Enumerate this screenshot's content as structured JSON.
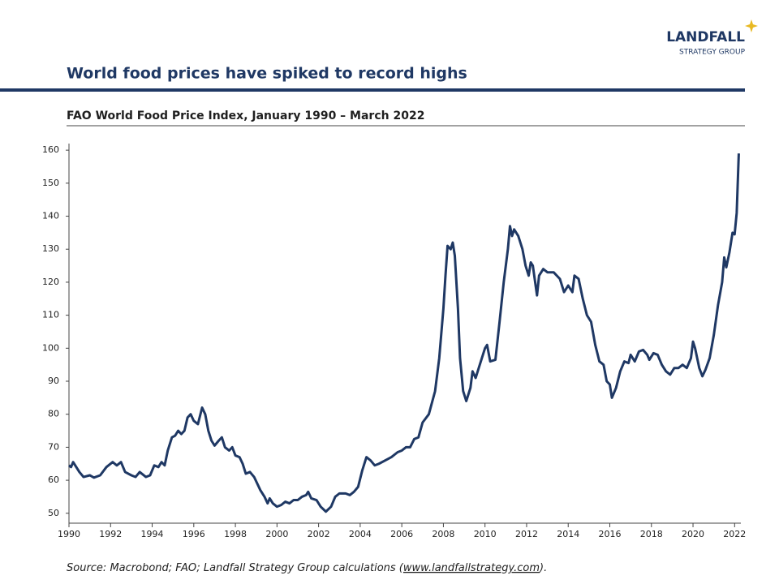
{
  "logo": {
    "name": "LANDFALL",
    "tagline": "STRATEGY GROUP"
  },
  "chart_data": {
    "type": "line",
    "title": "World food prices have spiked to record highs",
    "subtitle": "FAO World Food Price Index, January 1990 – March 2022",
    "x": [
      1990.0,
      1990.1,
      1990.2,
      1990.5,
      1990.7,
      1991.0,
      1991.2,
      1991.5,
      1991.8,
      1992.1,
      1992.3,
      1992.5,
      1992.7,
      1993.0,
      1993.2,
      1993.4,
      1993.7,
      1993.9,
      1994.1,
      1994.3,
      1994.45,
      1994.6,
      1994.75,
      1994.95,
      1995.1,
      1995.25,
      1995.4,
      1995.55,
      1995.7,
      1995.85,
      1996.0,
      1996.2,
      1996.4,
      1996.55,
      1996.7,
      1996.85,
      1997.0,
      1997.2,
      1997.35,
      1997.5,
      1997.7,
      1997.85,
      1998.0,
      1998.2,
      1998.35,
      1998.5,
      1998.7,
      1998.9,
      1999.05,
      1999.2,
      1999.4,
      1999.55,
      1999.65,
      1999.8,
      2000.0,
      2000.2,
      2000.4,
      2000.6,
      2000.8,
      2001.0,
      2001.2,
      2001.4,
      2001.5,
      2001.65,
      2001.9,
      2002.1,
      2002.35,
      2002.6,
      2002.8,
      2003.0,
      2003.3,
      2003.5,
      2003.7,
      2003.9,
      2004.1,
      2004.3,
      2004.5,
      2004.7,
      2004.9,
      2005.2,
      2005.5,
      2005.8,
      2006.0,
      2006.2,
      2006.4,
      2006.6,
      2006.8,
      2007.0,
      2007.3,
      2007.6,
      2007.8,
      2008.0,
      2008.1,
      2008.2,
      2008.35,
      2008.45,
      2008.55,
      2008.7,
      2008.8,
      2008.95,
      2009.1,
      2009.3,
      2009.4,
      2009.55,
      2009.7,
      2010.0,
      2010.1,
      2010.25,
      2010.5,
      2010.7,
      2010.9,
      2011.1,
      2011.2,
      2011.3,
      2011.4,
      2011.6,
      2011.8,
      2011.95,
      2012.1,
      2012.2,
      2012.3,
      2012.5,
      2012.6,
      2012.8,
      2013.0,
      2013.3,
      2013.6,
      2013.8,
      2014.0,
      2014.2,
      2014.3,
      2014.5,
      2014.7,
      2014.9,
      2015.1,
      2015.3,
      2015.5,
      2015.7,
      2015.85,
      2016.0,
      2016.1,
      2016.3,
      2016.5,
      2016.7,
      2016.9,
      2017.0,
      2017.2,
      2017.4,
      2017.6,
      2017.8,
      2017.9,
      2018.1,
      2018.3,
      2018.5,
      2018.7,
      2018.9,
      2019.1,
      2019.3,
      2019.5,
      2019.7,
      2019.9,
      2020.0,
      2020.1,
      2020.3,
      2020.45,
      2020.6,
      2020.8,
      2021.0,
      2021.2,
      2021.4,
      2021.5,
      2021.6,
      2021.75,
      2021.9,
      2022.0,
      2022.1,
      2022.2
    ],
    "series": [
      {
        "name": "FAO World Food Price Index",
        "color": "#1f3864",
        "values": [
          64.5,
          64,
          65.5,
          62.5,
          61,
          61.5,
          60.8,
          61.5,
          64,
          65.5,
          64.5,
          65.5,
          62.5,
          61.5,
          61,
          62.5,
          61,
          61.5,
          64.5,
          64,
          65.5,
          64.5,
          69,
          73,
          73.5,
          75,
          74,
          75,
          79,
          80,
          78,
          77,
          82,
          80,
          75,
          72,
          70.5,
          72,
          73,
          70,
          69,
          70,
          67.5,
          67,
          65,
          62,
          62.5,
          61,
          59,
          57,
          55,
          53,
          54.5,
          53,
          52,
          52.5,
          53.5,
          53,
          54,
          54,
          55,
          55.5,
          56.5,
          54.5,
          54,
          52,
          50.5,
          52,
          55,
          56,
          56,
          55.5,
          56.5,
          58,
          63,
          67,
          66,
          64.5,
          65,
          66,
          67,
          68.5,
          69,
          70,
          70,
          72.5,
          73,
          77.5,
          80,
          87,
          97,
          112,
          122,
          131,
          130,
          132,
          128,
          112,
          97,
          87,
          84,
          88,
          93,
          91,
          94,
          100,
          101,
          96,
          96.5,
          108,
          120,
          130,
          137,
          134,
          136,
          134,
          130,
          125,
          122,
          126,
          125,
          116,
          122,
          124,
          123,
          123,
          121,
          117,
          119,
          117,
          122,
          121,
          115,
          110,
          108,
          101,
          96,
          95,
          90,
          89,
          85,
          88,
          93,
          96,
          95.5,
          98,
          96,
          99,
          99.5,
          98,
          96.5,
          98.5,
          98,
          95,
          93,
          92,
          94,
          94,
          95,
          94,
          97,
          102,
          100,
          94,
          91.5,
          93.5,
          97,
          104,
          113,
          120,
          127.5,
          124.5,
          129,
          135,
          134.5,
          141,
          159
        ]
      }
    ],
    "xlim": [
      1990,
      2022.3
    ],
    "xticks": [
      1990,
      1992,
      1994,
      1996,
      1998,
      2000,
      2002,
      2004,
      2006,
      2008,
      2010,
      2012,
      2014,
      2016,
      2018,
      2020,
      2022
    ],
    "ylim": [
      47,
      162
    ],
    "yticks": [
      50,
      60,
      70,
      80,
      90,
      100,
      110,
      120,
      130,
      140,
      150,
      160
    ],
    "grid": false
  },
  "source": {
    "prefix": "Source: Macrobond; FAO; Landfall Strategy Group calculations (",
    "link": "www.landfallstrategy.com",
    "suffix": ")."
  }
}
